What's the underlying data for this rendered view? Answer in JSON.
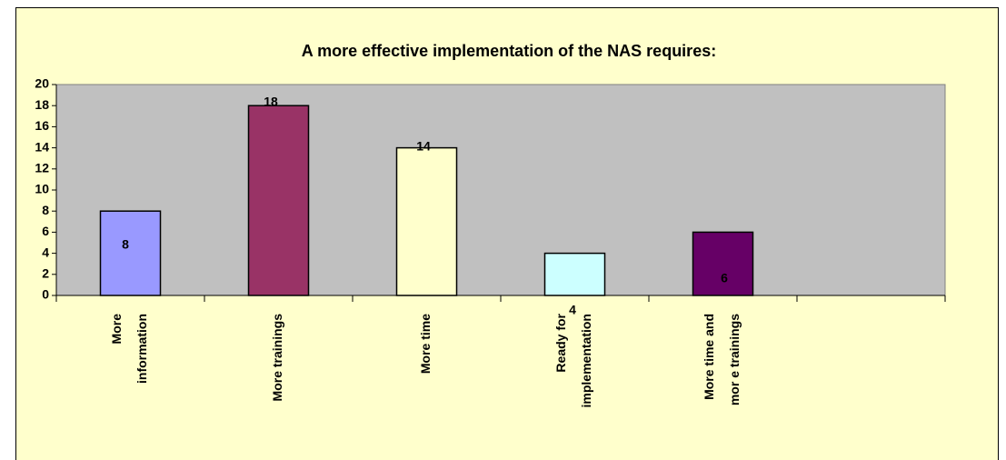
{
  "chart_data": {
    "type": "bar",
    "title": "A more effective implementation of the NAS requires:",
    "categories": [
      [
        "More",
        "information"
      ],
      [
        "More trainings"
      ],
      [
        "More time"
      ],
      [
        "Ready for",
        "implementation"
      ],
      [
        "More time and",
        "mor e trainings"
      ],
      null
    ],
    "values": [
      8,
      18,
      14,
      4,
      6,
      null
    ],
    "colors": [
      "#9999ff",
      "#993366",
      "#ffffcc",
      "#ccffff",
      "#660066",
      null
    ],
    "ylim": [
      0,
      20
    ],
    "yticks": [
      0,
      2,
      4,
      6,
      8,
      10,
      12,
      14,
      16,
      18,
      20
    ],
    "grid": false
  }
}
